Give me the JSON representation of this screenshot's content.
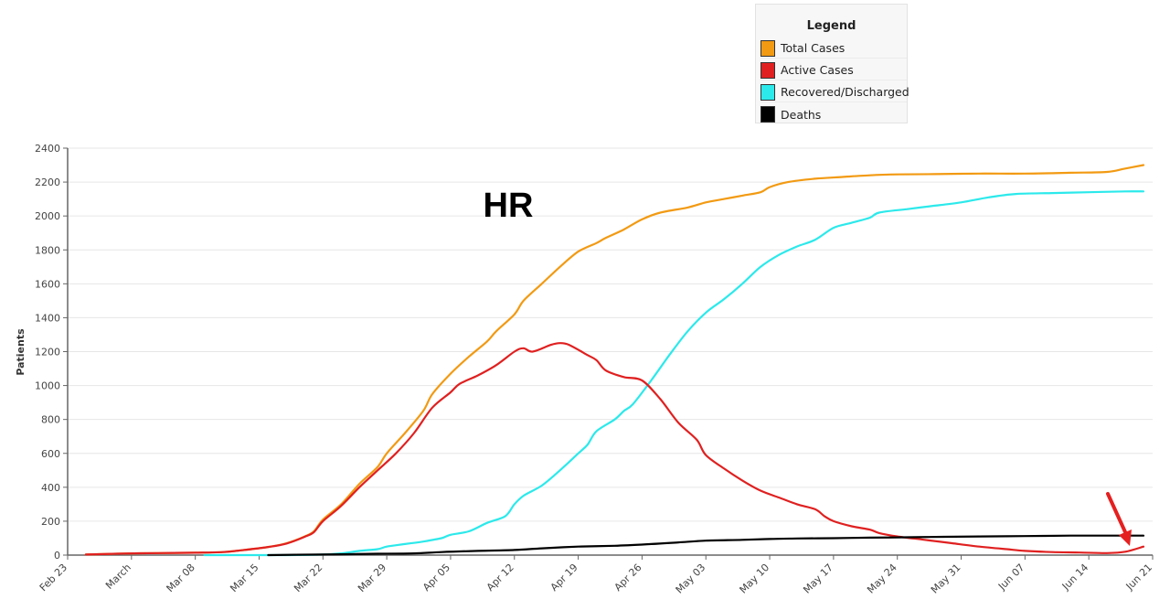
{
  "chart_data": {
    "type": "line",
    "title": "HR",
    "ylabel": "Patients",
    "xlabel": "",
    "ylim": [
      0,
      2400
    ],
    "yticks": [
      "0",
      "200",
      "400",
      "600",
      "800",
      "1000",
      "1200",
      "1400",
      "1600",
      "1800",
      "2000",
      "2200",
      "2400"
    ],
    "xticks": [
      {
        "label": "Feb 23",
        "day": 0
      },
      {
        "label": "March",
        "day": 7
      },
      {
        "label": "Mar 08",
        "day": 14
      },
      {
        "label": "Mar 15",
        "day": 21
      },
      {
        "label": "Mar 22",
        "day": 28
      },
      {
        "label": "Mar 29",
        "day": 35
      },
      {
        "label": "Apr 05",
        "day": 42
      },
      {
        "label": "Apr 12",
        "day": 49
      },
      {
        "label": "Apr 19",
        "day": 56
      },
      {
        "label": "Apr 26",
        "day": 63
      },
      {
        "label": "May 03",
        "day": 70
      },
      {
        "label": "May 10",
        "day": 77
      },
      {
        "label": "May 17",
        "day": 84
      },
      {
        "label": "May 24",
        "day": 91
      },
      {
        "label": "May 31",
        "day": 98
      },
      {
        "label": "Jun 07",
        "day": 105
      },
      {
        "label": "Jun 14",
        "day": 112
      },
      {
        "label": "Jun 21",
        "day": 119
      }
    ],
    "grid": true,
    "series": [
      {
        "name": "Total Cases",
        "color": "#f29a12",
        "points": [
          [
            2,
            3
          ],
          [
            6,
            9
          ],
          [
            10,
            12
          ],
          [
            14,
            14
          ],
          [
            17,
            18
          ],
          [
            19,
            28
          ],
          [
            22,
            48
          ],
          [
            24,
            70
          ],
          [
            26,
            110
          ],
          [
            27,
            140
          ],
          [
            28,
            210
          ],
          [
            30,
            300
          ],
          [
            32,
            420
          ],
          [
            34,
            520
          ],
          [
            35,
            600
          ],
          [
            37,
            720
          ],
          [
            39,
            850
          ],
          [
            40,
            950
          ],
          [
            42,
            1070
          ],
          [
            44,
            1170
          ],
          [
            46,
            1260
          ],
          [
            47,
            1320
          ],
          [
            49,
            1420
          ],
          [
            50,
            1500
          ],
          [
            52,
            1600
          ],
          [
            54,
            1700
          ],
          [
            56,
            1790
          ],
          [
            58,
            1840
          ],
          [
            59,
            1870
          ],
          [
            61,
            1920
          ],
          [
            63,
            1980
          ],
          [
            65,
            2020
          ],
          [
            68,
            2050
          ],
          [
            70,
            2080
          ],
          [
            72,
            2100
          ],
          [
            74,
            2120
          ],
          [
            76,
            2140
          ],
          [
            77,
            2170
          ],
          [
            79,
            2200
          ],
          [
            82,
            2220
          ],
          [
            85,
            2230
          ],
          [
            88,
            2240
          ],
          [
            91,
            2245
          ],
          [
            95,
            2247
          ],
          [
            100,
            2250
          ],
          [
            105,
            2250
          ],
          [
            110,
            2255
          ],
          [
            114,
            2260
          ],
          [
            116,
            2280
          ],
          [
            118,
            2300
          ]
        ]
      },
      {
        "name": "Active Cases",
        "color": "#e02020",
        "points": [
          [
            2,
            3
          ],
          [
            6,
            9
          ],
          [
            10,
            12
          ],
          [
            14,
            14
          ],
          [
            17,
            18
          ],
          [
            19,
            28
          ],
          [
            22,
            48
          ],
          [
            24,
            68
          ],
          [
            26,
            108
          ],
          [
            27,
            135
          ],
          [
            28,
            200
          ],
          [
            30,
            290
          ],
          [
            32,
            400
          ],
          [
            34,
            500
          ],
          [
            36,
            600
          ],
          [
            38,
            720
          ],
          [
            40,
            870
          ],
          [
            42,
            960
          ],
          [
            43,
            1010
          ],
          [
            45,
            1060
          ],
          [
            47,
            1120
          ],
          [
            49,
            1200
          ],
          [
            50,
            1220
          ],
          [
            51,
            1200
          ],
          [
            53,
            1240
          ],
          [
            54,
            1250
          ],
          [
            55,
            1240
          ],
          [
            57,
            1180
          ],
          [
            58,
            1150
          ],
          [
            59,
            1090
          ],
          [
            61,
            1050
          ],
          [
            63,
            1030
          ],
          [
            65,
            920
          ],
          [
            67,
            780
          ],
          [
            69,
            680
          ],
          [
            70,
            590
          ],
          [
            72,
            510
          ],
          [
            74,
            440
          ],
          [
            76,
            380
          ],
          [
            78,
            340
          ],
          [
            80,
            300
          ],
          [
            82,
            270
          ],
          [
            83,
            230
          ],
          [
            84,
            200
          ],
          [
            86,
            170
          ],
          [
            88,
            150
          ],
          [
            89,
            130
          ],
          [
            91,
            110
          ],
          [
            94,
            90
          ],
          [
            97,
            70
          ],
          [
            100,
            50
          ],
          [
            103,
            35
          ],
          [
            105,
            25
          ],
          [
            108,
            18
          ],
          [
            111,
            15
          ],
          [
            114,
            12
          ],
          [
            116,
            20
          ],
          [
            118,
            50
          ]
        ]
      },
      {
        "name": "Recovered/Discharged",
        "color": "#2ce9eb",
        "points": [
          [
            15,
            0
          ],
          [
            20,
            0
          ],
          [
            24,
            0
          ],
          [
            28,
            3
          ],
          [
            30,
            10
          ],
          [
            32,
            25
          ],
          [
            34,
            35
          ],
          [
            35,
            50
          ],
          [
            37,
            65
          ],
          [
            39,
            80
          ],
          [
            41,
            100
          ],
          [
            42,
            120
          ],
          [
            44,
            140
          ],
          [
            46,
            190
          ],
          [
            48,
            230
          ],
          [
            49,
            300
          ],
          [
            50,
            350
          ],
          [
            52,
            410
          ],
          [
            54,
            500
          ],
          [
            56,
            600
          ],
          [
            57,
            650
          ],
          [
            58,
            730
          ],
          [
            60,
            800
          ],
          [
            61,
            850
          ],
          [
            62,
            890
          ],
          [
            64,
            1030
          ],
          [
            66,
            1180
          ],
          [
            68,
            1320
          ],
          [
            70,
            1430
          ],
          [
            72,
            1510
          ],
          [
            74,
            1600
          ],
          [
            76,
            1700
          ],
          [
            78,
            1770
          ],
          [
            80,
            1820
          ],
          [
            82,
            1860
          ],
          [
            84,
            1930
          ],
          [
            86,
            1960
          ],
          [
            88,
            1990
          ],
          [
            89,
            2020
          ],
          [
            92,
            2040
          ],
          [
            95,
            2060
          ],
          [
            98,
            2080
          ],
          [
            101,
            2110
          ],
          [
            104,
            2130
          ],
          [
            108,
            2135
          ],
          [
            112,
            2140
          ],
          [
            116,
            2145
          ],
          [
            118,
            2145
          ]
        ]
      },
      {
        "name": "Deaths",
        "color": "#000000",
        "points": [
          [
            22,
            0
          ],
          [
            25,
            2
          ],
          [
            30,
            5
          ],
          [
            34,
            8
          ],
          [
            38,
            10
          ],
          [
            41,
            18
          ],
          [
            45,
            25
          ],
          [
            49,
            30
          ],
          [
            52,
            40
          ],
          [
            56,
            50
          ],
          [
            60,
            55
          ],
          [
            64,
            65
          ],
          [
            67,
            75
          ],
          [
            70,
            85
          ],
          [
            74,
            90
          ],
          [
            77,
            95
          ],
          [
            80,
            98
          ],
          [
            84,
            100
          ],
          [
            88,
            103
          ],
          [
            92,
            105
          ],
          [
            96,
            108
          ],
          [
            100,
            110
          ],
          [
            105,
            112
          ],
          [
            110,
            115
          ],
          [
            114,
            115
          ],
          [
            118,
            115
          ]
        ]
      }
    ]
  },
  "legend": {
    "title": "Legend",
    "items": [
      {
        "label": "Total Cases",
        "color": "#f29a12"
      },
      {
        "label": "Active Cases",
        "color": "#e02020"
      },
      {
        "label": "Recovered/Discharged",
        "color": "#2ce9eb"
      },
      {
        "label": "Deaths",
        "color": "#000000"
      }
    ]
  }
}
